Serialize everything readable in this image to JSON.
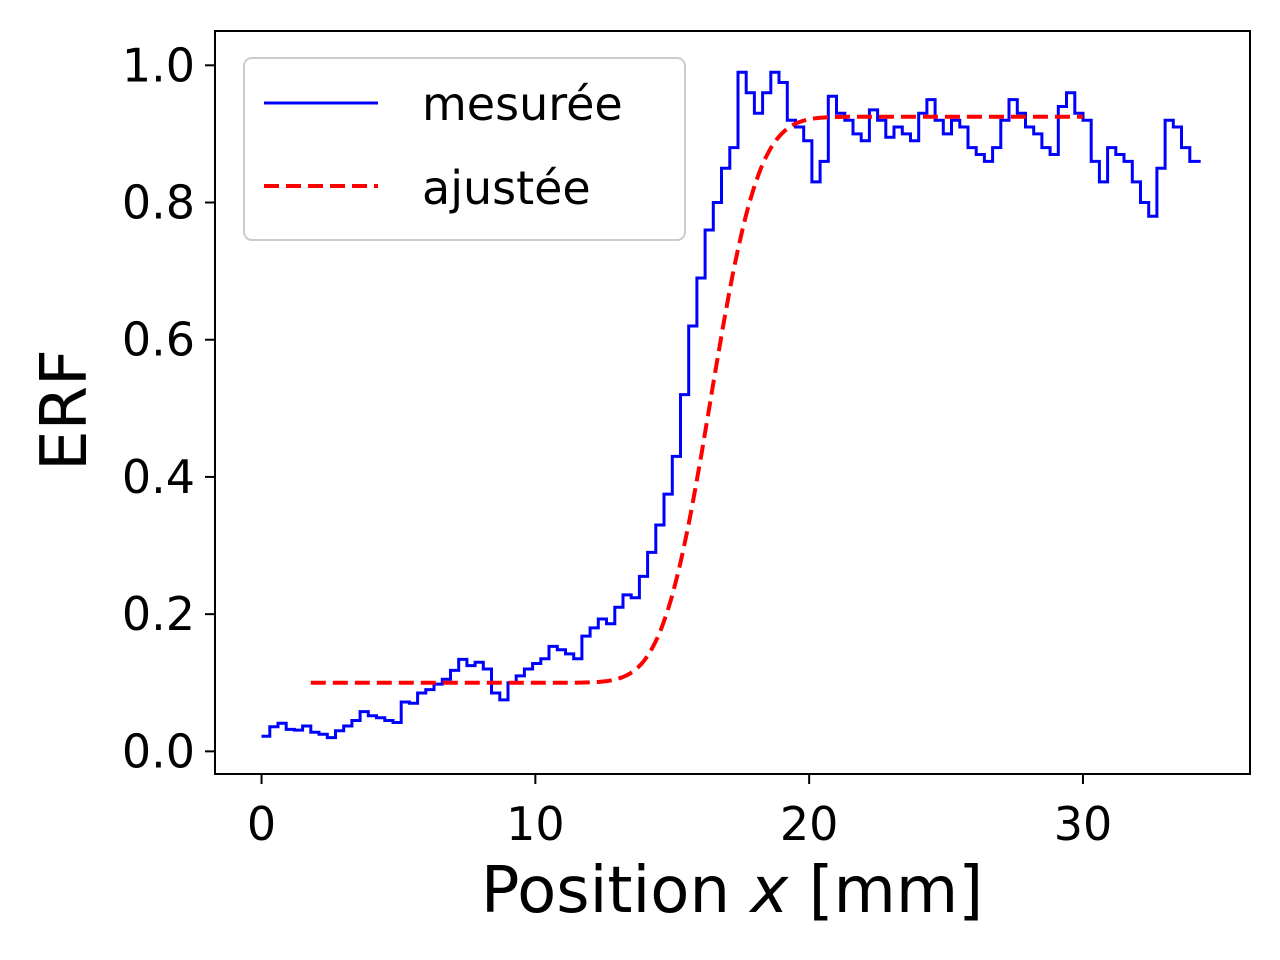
{
  "chart_data": {
    "type": "line",
    "xlabel_prefix": "Position ",
    "xlabel_var": "x",
    "xlabel_suffix": " [mm]",
    "ylabel": "ERF",
    "xlim": [
      -1.7,
      36.1
    ],
    "ylim": [
      -0.033,
      1.05
    ],
    "x_ticks": [
      0,
      10,
      20,
      30
    ],
    "x_tick_labels": [
      "0",
      "10",
      "20",
      "30"
    ],
    "y_ticks": [
      0.0,
      0.2,
      0.4,
      0.6,
      0.8,
      1.0
    ],
    "y_tick_labels": [
      "0.0",
      "0.2",
      "0.4",
      "0.6",
      "0.8",
      "1.0"
    ],
    "grid": false,
    "legend_position": "top-left",
    "series": [
      {
        "name": "mesurée",
        "style": "step",
        "color": "#0000ff",
        "x": [
          0.0,
          0.3,
          0.6,
          0.9,
          1.2,
          1.5,
          1.8,
          2.1,
          2.4,
          2.7,
          3.0,
          3.3,
          3.6,
          3.9,
          4.2,
          4.5,
          4.8,
          5.1,
          5.4,
          5.7,
          6.0,
          6.3,
          6.6,
          6.9,
          7.2,
          7.5,
          7.8,
          8.1,
          8.4,
          8.7,
          9.0,
          9.3,
          9.6,
          9.9,
          10.2,
          10.5,
          10.8,
          11.1,
          11.4,
          11.7,
          12.0,
          12.3,
          12.6,
          12.9,
          13.2,
          13.5,
          13.8,
          14.1,
          14.4,
          14.7,
          15.0,
          15.3,
          15.6,
          15.9,
          16.2,
          16.5,
          16.8,
          17.1,
          17.4,
          17.7,
          18.0,
          18.3,
          18.6,
          18.9,
          19.2,
          19.5,
          19.8,
          20.1,
          20.4,
          20.7,
          21.0,
          21.3,
          21.6,
          21.9,
          22.2,
          22.5,
          22.8,
          23.1,
          23.4,
          23.7,
          24.0,
          24.3,
          24.6,
          24.9,
          25.2,
          25.5,
          25.8,
          26.1,
          26.4,
          26.7,
          27.0,
          27.3,
          27.6,
          27.9,
          28.2,
          28.5,
          28.8,
          29.1,
          29.4,
          29.7,
          30.0,
          30.3,
          30.6,
          30.9,
          31.2,
          31.5,
          31.8,
          32.1,
          32.4,
          32.7,
          33.0,
          33.3,
          33.6,
          33.9,
          34.2
        ],
        "y": [
          0.022,
          0.036,
          0.041,
          0.032,
          0.031,
          0.037,
          0.028,
          0.025,
          0.02,
          0.03,
          0.037,
          0.045,
          0.058,
          0.052,
          0.049,
          0.045,
          0.042,
          0.072,
          0.07,
          0.085,
          0.09,
          0.098,
          0.105,
          0.118,
          0.134,
          0.125,
          0.13,
          0.12,
          0.085,
          0.075,
          0.1,
          0.11,
          0.12,
          0.128,
          0.135,
          0.153,
          0.148,
          0.142,
          0.135,
          0.168,
          0.18,
          0.193,
          0.186,
          0.21,
          0.228,
          0.224,
          0.255,
          0.29,
          0.33,
          0.375,
          0.43,
          0.52,
          0.62,
          0.69,
          0.76,
          0.8,
          0.85,
          0.88,
          0.99,
          0.96,
          0.93,
          0.96,
          0.99,
          0.975,
          0.92,
          0.91,
          0.89,
          0.83,
          0.86,
          0.955,
          0.93,
          0.92,
          0.9,
          0.89,
          0.935,
          0.92,
          0.895,
          0.91,
          0.9,
          0.89,
          0.93,
          0.95,
          0.92,
          0.9,
          0.92,
          0.91,
          0.88,
          0.87,
          0.86,
          0.88,
          0.92,
          0.95,
          0.93,
          0.91,
          0.9,
          0.88,
          0.87,
          0.94,
          0.96,
          0.93,
          0.92,
          0.86,
          0.83,
          0.88,
          0.87,
          0.86,
          0.83,
          0.8,
          0.78,
          0.85,
          0.92,
          0.91,
          0.88,
          0.86,
          0.86
        ]
      },
      {
        "name": "ajustée",
        "style": "dashed",
        "color": "#ff0000",
        "fit": {
          "low": 0.1,
          "high": 0.925,
          "center": 16.4,
          "width": 1.95
        },
        "x_range": [
          1.8,
          30.0
        ]
      }
    ]
  }
}
